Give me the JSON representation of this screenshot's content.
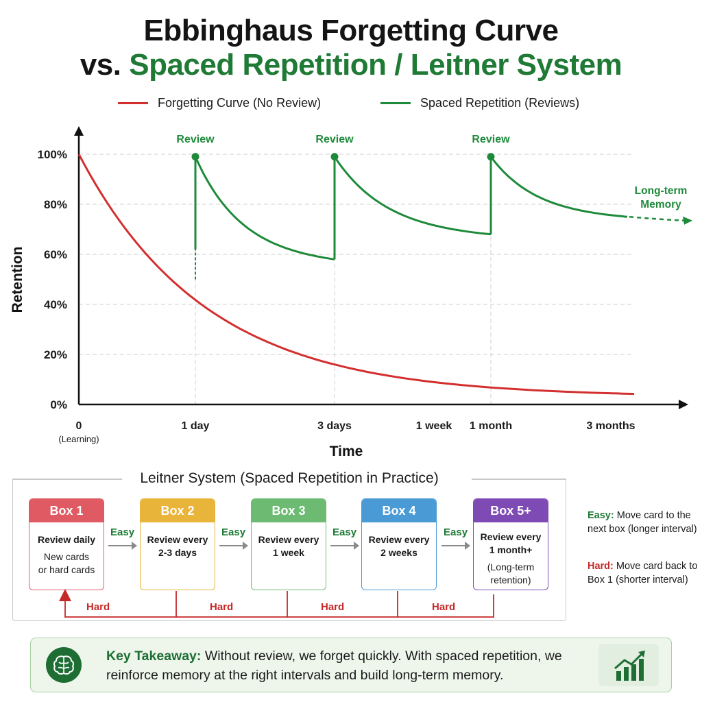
{
  "title": {
    "line1": "Ebbinghaus Forgetting Curve",
    "line2_prefix": "vs.",
    "line2_highlight": "Spaced Repetition / Leitner System"
  },
  "legend": {
    "forgetting": "Forgetting Curve (No Review)",
    "spaced": "Spaced Repetition (Reviews)"
  },
  "colors": {
    "forgetting": "#d32f2f",
    "spaced": "#1e8a3a",
    "box1": "#e05a63",
    "box2": "#e9b43a",
    "box3": "#6dbb73",
    "box4": "#4a9ad6",
    "box5": "#7e4bb5"
  },
  "chart_data": {
    "type": "line",
    "xlabel": "Time",
    "ylabel": "Retention",
    "ylim": [
      0,
      100
    ],
    "y_ticks": [
      "0%",
      "20%",
      "40%",
      "60%",
      "80%",
      "100%"
    ],
    "x_ticks": [
      {
        "label": "0",
        "sub": "(Learning)"
      },
      {
        "label": "1 day"
      },
      {
        "label": "3 days"
      },
      {
        "label": "1 week"
      },
      {
        "label": "1 month"
      },
      {
        "label": "3 months"
      }
    ],
    "grid": true,
    "series": [
      {
        "name": "Forgetting Curve (No Review)",
        "points": [
          [
            0,
            100
          ],
          [
            0.5,
            69
          ],
          [
            1,
            43
          ],
          [
            1.5,
            29
          ],
          [
            2,
            18
          ],
          [
            2.5,
            12
          ],
          [
            3,
            8
          ],
          [
            3.5,
            5
          ],
          [
            4,
            4
          ],
          [
            4.6,
            3
          ]
        ]
      },
      {
        "name": "Spaced Repetition (Reviews)",
        "segments": [
          [
            [
              1,
              50
            ],
            [
              1,
              99
            ]
          ],
          [
            [
              1,
              99
            ],
            [
              1.3,
              85
            ],
            [
              1.6,
              73
            ],
            [
              2,
              66
            ],
            [
              2.4,
              61
            ],
            [
              2.75,
              58
            ],
            [
              3,
              58
            ],
            [
              3,
              99
            ]
          ],
          [
            [
              3,
              99
            ],
            [
              3.4,
              88
            ],
            [
              3.8,
              80
            ],
            [
              4.2,
              74
            ],
            [
              4.6,
              70
            ],
            [
              4.97,
              68
            ],
            [
              4.97,
              99
            ]
          ],
          [
            [
              4.97,
              99
            ],
            [
              5.4,
              88
            ],
            [
              5.8,
              82
            ],
            [
              6.2,
              78
            ],
            [
              6.6,
              76
            ],
            [
              7.05,
              75
            ]
          ]
        ]
      }
    ],
    "annotations": {
      "review": "Review",
      "longterm_line1": "Long-term",
      "longterm_line2": "Memory"
    }
  },
  "leitner": {
    "title": "Leitner System (Spaced Repetition in Practice)",
    "boxes": [
      {
        "name": "Box 1",
        "line1": "Review daily",
        "line2": "New cards",
        "line3": "or hard cards"
      },
      {
        "name": "Box 2",
        "line1": "Review every",
        "line2": "2-3 days",
        "line3": ""
      },
      {
        "name": "Box 3",
        "line1": "Review every",
        "line2": "1 week",
        "line3": ""
      },
      {
        "name": "Box 4",
        "line1": "Review every",
        "line2": "2 weeks",
        "line3": ""
      },
      {
        "name": "Box 5+",
        "line1": "Review every",
        "line2": "1 month+",
        "line3": "(Long-term",
        "line4": "retention)"
      }
    ],
    "easy_label": "Easy",
    "hard_label": "Hard",
    "notes": {
      "easy_title": "Easy:",
      "easy_text": "Move card to the next box (longer interval)",
      "hard_title": "Hard:",
      "hard_text": "Move card back to Box 1 (shorter interval)"
    }
  },
  "takeaway": {
    "label": "Key Takeaway:",
    "text": "Without review, we forget quickly. With spaced repetition, we reinforce memory at the right intervals and build long-term memory."
  },
  "icons": {
    "brain": "brain-icon",
    "growth": "growth-chart-icon"
  }
}
